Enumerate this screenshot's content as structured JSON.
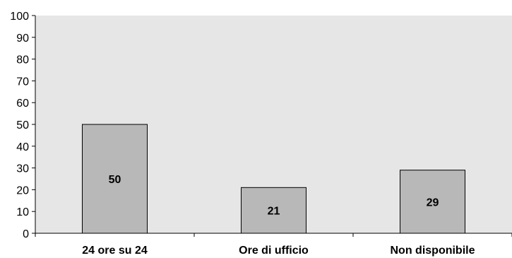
{
  "chart_data": {
    "type": "bar",
    "title": "",
    "xlabel": "",
    "ylabel": "",
    "categories": [
      "24 ore su 24",
      "Ore di ufficio",
      "Non disponibile"
    ],
    "values": [
      50,
      21,
      29
    ],
    "ylim": [
      0,
      100
    ],
    "yticks": [
      0,
      10,
      20,
      30,
      40,
      50,
      60,
      70,
      80,
      90,
      100
    ],
    "grid": false,
    "legend": "none",
    "data_labels": true,
    "colors": {
      "plot_background": "#e6e6e6",
      "bar_fill": "#b8b8b8",
      "bar_stroke": "#000000",
      "axis": "#000000"
    }
  }
}
